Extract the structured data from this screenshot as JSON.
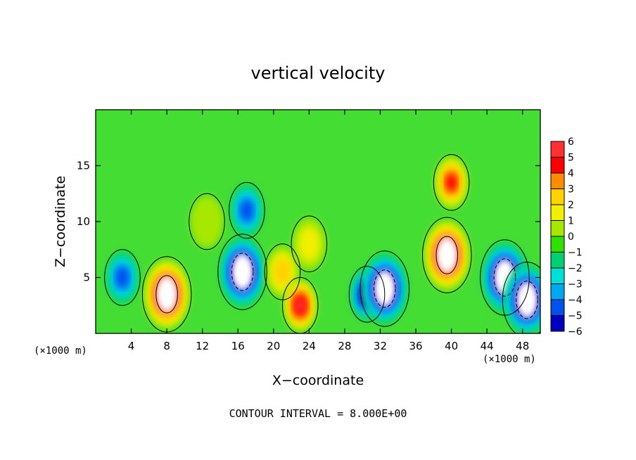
{
  "chart_data": {
    "type": "heatmap",
    "title": "vertical velocity",
    "xlabel": "X−coordinate",
    "ylabel": "Z−coordinate",
    "x_unit_left": "(×1000 m)",
    "x_unit_right": "(×1000 m)",
    "footer": "CONTOUR INTERVAL = 8.000E+00",
    "xlim": [
      0,
      50
    ],
    "ylim": [
      0,
      20
    ],
    "x_ticks": [
      4,
      8,
      12,
      16,
      20,
      24,
      28,
      32,
      36,
      40,
      44,
      48
    ],
    "y_ticks": [
      5,
      10,
      15
    ],
    "colorbar": {
      "levels": [
        6,
        5,
        4,
        3,
        2,
        1,
        0,
        -1,
        -2,
        -3,
        -4,
        -5,
        -6
      ],
      "level_labels": [
        "6",
        "5",
        "4",
        "3",
        "2",
        "1",
        "0",
        "−1",
        "−2",
        "−3",
        "−4",
        "−5",
        "−6"
      ],
      "colors": [
        "#f08080",
        "#ff3030",
        "#ff0000",
        "#ff8c00",
        "#ffd200",
        "#f0f000",
        "#a8e800",
        "#30e000",
        "#00d070",
        "#00e0d8",
        "#00a8f0",
        "#0050f0",
        "#0000c0",
        "#7000b0"
      ]
    },
    "background_color": "#44dd33",
    "cells": [
      {
        "x": 3.0,
        "z": 5.0,
        "w": -3.5
      },
      {
        "x": 8.0,
        "z": 3.5,
        "w": 9.0
      },
      {
        "x": 12.5,
        "z": 10.0,
        "w": 0.8
      },
      {
        "x": 16.5,
        "z": 5.5,
        "w": -9.0
      },
      {
        "x": 17.0,
        "z": 11.0,
        "w": -3.5
      },
      {
        "x": 21.0,
        "z": 5.5,
        "w": 3.0
      },
      {
        "x": 23.0,
        "z": 2.5,
        "w": 5.5
      },
      {
        "x": 24.0,
        "z": 8.0,
        "w": 1.5
      },
      {
        "x": 30.5,
        "z": 3.5,
        "w": -6.0
      },
      {
        "x": 32.5,
        "z": 4.0,
        "w": -9.0
      },
      {
        "x": 39.5,
        "z": 7.0,
        "w": 11.0
      },
      {
        "x": 40.0,
        "z": 13.5,
        "w": 4.5
      },
      {
        "x": 46.0,
        "z": 5.0,
        "w": -8.0
      },
      {
        "x": 48.5,
        "z": 3.0,
        "w": -7.0
      }
    ]
  }
}
